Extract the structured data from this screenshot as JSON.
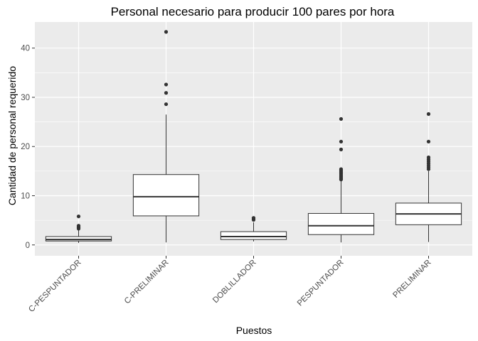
{
  "chart_data": {
    "type": "box",
    "title": "Personal necesario para producir 100 pares por hora",
    "xlabel": "Puestos",
    "ylabel": "Cantidad de personal requerido",
    "ylim": [
      -2.2,
      45.3
    ],
    "yticks": [
      0,
      10,
      20,
      30,
      40
    ],
    "grid": true,
    "legend": "none",
    "categories": [
      "C-PESPUNTADOR",
      "C-PRELIMINAR",
      "DOBLILLADOR",
      "PESPUNTADOR",
      "PRELIMINAR"
    ],
    "boxes": [
      {
        "category": "C-PESPUNTADOR",
        "min": 0.4,
        "q1": 0.8,
        "median": 1.1,
        "q3": 1.7,
        "max": 3.0,
        "outliers": [
          3.3,
          3.5,
          3.7,
          3.9,
          5.8
        ]
      },
      {
        "category": "C-PRELIMINAR",
        "min": 0.5,
        "q1": 5.9,
        "median": 9.8,
        "q3": 14.3,
        "max": 26.5,
        "outliers": [
          28.6,
          30.9,
          32.6,
          43.3
        ]
      },
      {
        "category": "DOBLILLADOR",
        "min": 0.7,
        "q1": 1.1,
        "median": 1.7,
        "q3": 2.7,
        "max": 4.6,
        "outliers": [
          5.1,
          5.3,
          5.5
        ]
      },
      {
        "category": "PESPUNTADOR",
        "min": 0.5,
        "q1": 2.1,
        "median": 3.9,
        "q3": 6.4,
        "max": 13.0,
        "outliers": [
          13.3,
          13.6,
          13.9,
          14.2,
          14.5,
          14.8,
          15.1,
          15.4,
          19.4,
          21.0,
          25.6
        ]
      },
      {
        "category": "PRELIMINAR",
        "min": 0.6,
        "q1": 4.1,
        "median": 6.3,
        "q3": 8.5,
        "max": 15.0,
        "outliers": [
          15.4,
          15.8,
          16.2,
          16.6,
          17.0,
          17.4,
          17.8,
          21.0,
          26.6
        ]
      }
    ],
    "colors": {
      "panel": "#ebebeb",
      "grid": "#ffffff",
      "box_fill": "#ffffff",
      "box_line": "#333333",
      "outlier": "#333333"
    }
  }
}
